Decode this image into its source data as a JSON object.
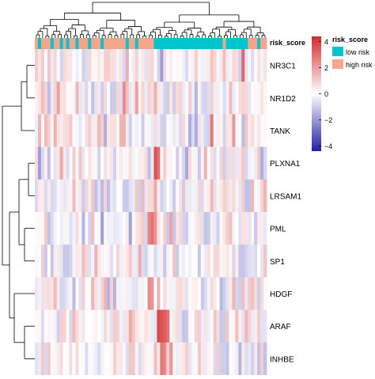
{
  "chart_data": {
    "type": "heatmap",
    "title": "",
    "genes": [
      "NR3C1",
      "NR1D2",
      "TANK",
      "PLXNA1",
      "LRSAM1",
      "PML",
      "SP1",
      "HDGF",
      "ARAF",
      "INHBE"
    ],
    "annotation": {
      "name": "risk_score",
      "legend_title": "risk_score",
      "levels": [
        {
          "label": "low risk",
          "color": "#00c5cd"
        },
        {
          "label": "high risk",
          "color": "#f4a58a"
        }
      ],
      "samples": [
        "H",
        "L",
        "H",
        "H",
        "H",
        "L",
        "H",
        "H",
        "L",
        "H",
        "L",
        "H",
        "H",
        "L",
        "H",
        "H",
        "H",
        "L",
        "H",
        "H",
        "H",
        "L",
        "H",
        "H",
        "H",
        "H",
        "H",
        "H",
        "H",
        "L",
        "H",
        "H",
        "L",
        "H",
        "H",
        "H",
        "H",
        "H",
        "L",
        "L",
        "L",
        "L",
        "L",
        "L",
        "L",
        "L",
        "L",
        "L",
        "L",
        "L",
        "L",
        "L",
        "L",
        "L",
        "L",
        "L",
        "L",
        "L",
        "L",
        "L",
        "H",
        "L",
        "L",
        "L",
        "L",
        "L",
        "L",
        "L",
        "H",
        "H",
        "H",
        "L",
        "H",
        "H"
      ]
    },
    "color_scale": {
      "min": -4.4,
      "max": 4.4,
      "ticks": [
        4,
        2,
        0,
        -2,
        -4
      ],
      "tick_labels": [
        "4",
        "2",
        "0",
        "−2",
        "−4"
      ],
      "low_color": "#1f1fa8",
      "mid_color": "#ffffff",
      "high_color": "#d42c2c"
    },
    "row_dendrogram": "shown (left)",
    "column_dendrogram": "shown (top)",
    "legend_position": "right",
    "values_note": "cell values approximated from colour intensity"
  }
}
